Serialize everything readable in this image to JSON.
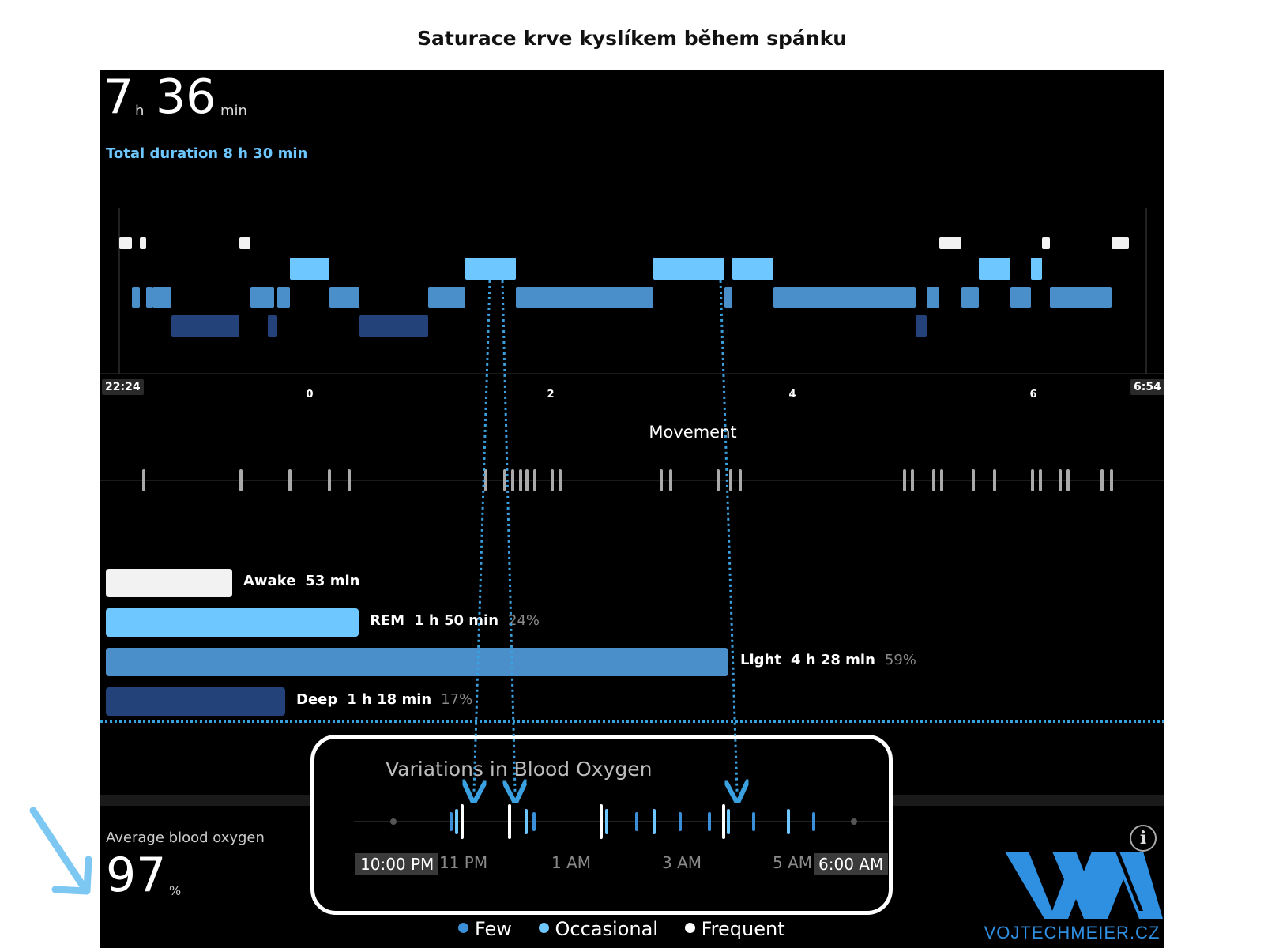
{
  "page_title": "Saturace krve kyslíkem během spánku",
  "sleep_duration": {
    "hours": "7",
    "hours_unit": "h",
    "minutes": "36",
    "minutes_unit": "min"
  },
  "total_duration": "Total duration 8 h 30 min",
  "hypnogram": {
    "start_time": "22:24",
    "end_time": "6:54",
    "axis_labels": [
      "0",
      "2",
      "4",
      "6"
    ]
  },
  "movement": {
    "title": "Movement"
  },
  "stages": [
    {
      "name": "Awake",
      "duration": "53 min",
      "percent": "",
      "color": "#f2f2f2",
      "fraction": 0.117
    },
    {
      "name": "REM",
      "duration": "1 h 50 min",
      "percent": "24%",
      "color": "#6ec7ff",
      "fraction": 0.24
    },
    {
      "name": "Light",
      "duration": "4 h 28 min",
      "percent": "59%",
      "color": "#4a8fca",
      "fraction": 0.59
    },
    {
      "name": "Deep",
      "duration": "1 h 18 min",
      "percent": "17%",
      "color": "#23427a",
      "fraction": 0.17
    }
  ],
  "blood_oxygen": {
    "average_label": "Average blood oxygen",
    "average_value": "97",
    "average_unit": "%"
  },
  "variations": {
    "title": "Variations in Blood Oxygen",
    "time_labels": [
      "10:00 PM",
      "11 PM",
      "1 AM",
      "3 AM",
      "5 AM",
      "6:00 AM"
    ],
    "legend": [
      {
        "label": "Few",
        "color": "#3a8fd8"
      },
      {
        "label": "Occasional",
        "color": "#6ec7ff"
      },
      {
        "label": "Frequent",
        "color": "#ffffff"
      }
    ]
  },
  "info_icon": "info-icon",
  "logo": {
    "caption": "VOJTECHMEIER.CZ",
    "brand_color": "#2f8fe0"
  },
  "colors": {
    "awake": "#f2f2f2",
    "rem": "#6ec7ff",
    "light": "#4a8fca",
    "deep": "#23427a",
    "annotation": "#3aa0e0"
  }
}
